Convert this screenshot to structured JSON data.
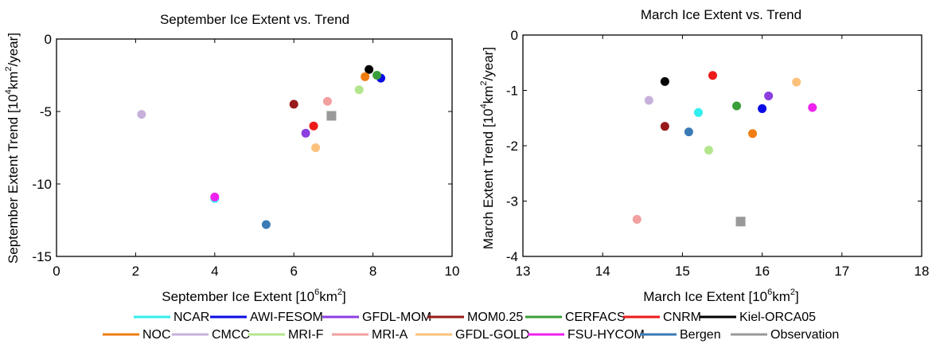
{
  "chart_data": [
    {
      "type": "scatter",
      "title": "September Ice Extent vs. Trend",
      "xlabel": {
        "pre": "September Ice Extent [10",
        "sup": "6",
        "post": "km",
        "sup2": "2",
        "end": "]"
      },
      "ylabel": {
        "pre": "September Extent Trend [10",
        "sup": "4",
        "post": "km",
        "sup2": "2",
        "end": "/year]"
      },
      "xlim": [
        0,
        10
      ],
      "ylim": [
        -15,
        0
      ],
      "xticks": [
        0,
        2,
        4,
        6,
        8,
        10
      ],
      "yticks": [
        0,
        -5,
        -10,
        -15
      ],
      "grid": false,
      "series": [
        {
          "name": "NCAR",
          "x": 4.0,
          "y": -11.0
        },
        {
          "name": "AWI-FESOM",
          "x": 8.2,
          "y": -2.7
        },
        {
          "name": "GFDL-MOM",
          "x": 6.3,
          "y": -6.5
        },
        {
          "name": "MOM0.25",
          "x": 6.0,
          "y": -4.5
        },
        {
          "name": "CERFACS",
          "x": 8.1,
          "y": -2.5
        },
        {
          "name": "CNRM",
          "x": 6.5,
          "y": -6.0
        },
        {
          "name": "Kiel-ORCA05",
          "x": 7.9,
          "y": -2.1
        },
        {
          "name": "NOC",
          "x": 7.8,
          "y": -2.6
        },
        {
          "name": "CMCC",
          "x": 2.15,
          "y": -5.2
        },
        {
          "name": "MRI-F",
          "x": 7.65,
          "y": -3.5
        },
        {
          "name": "MRI-A",
          "x": 6.85,
          "y": -4.3
        },
        {
          "name": "GFDL-GOLD",
          "x": 6.55,
          "y": -7.5
        },
        {
          "name": "FSU-HYCOM",
          "x": 4.0,
          "y": -10.9
        },
        {
          "name": "Bergen",
          "x": 5.3,
          "y": -12.8
        },
        {
          "name": "Observation",
          "x": 6.95,
          "y": -5.3
        }
      ]
    },
    {
      "type": "scatter",
      "title": "March Ice Extent vs. Trend",
      "xlabel": {
        "pre": "March Ice Extent [10",
        "sup": "6",
        "post": "km",
        "sup2": "2",
        "end": "]"
      },
      "ylabel": {
        "pre": "March Extent Trend [10",
        "sup": "4",
        "post": "km",
        "sup2": "2",
        "end": "/year]"
      },
      "xlim": [
        13,
        18
      ],
      "ylim": [
        -4,
        0
      ],
      "xticks": [
        13,
        14,
        15,
        16,
        17,
        18
      ],
      "yticks": [
        0,
        -1,
        -2,
        -3,
        -4
      ],
      "grid": false,
      "series": [
        {
          "name": "NCAR",
          "x": 15.2,
          "y": -1.4
        },
        {
          "name": "AWI-FESOM",
          "x": 16.0,
          "y": -1.33
        },
        {
          "name": "GFDL-MOM",
          "x": 16.08,
          "y": -1.1
        },
        {
          "name": "MOM0.25",
          "x": 14.78,
          "y": -1.65
        },
        {
          "name": "CERFACS",
          "x": 15.68,
          "y": -1.28
        },
        {
          "name": "CNRM",
          "x": 15.38,
          "y": -0.73
        },
        {
          "name": "Kiel-ORCA05",
          "x": 14.78,
          "y": -0.84
        },
        {
          "name": "NOC",
          "x": 15.88,
          "y": -1.78
        },
        {
          "name": "CMCC",
          "x": 14.58,
          "y": -1.18
        },
        {
          "name": "MRI-F",
          "x": 15.33,
          "y": -2.08
        },
        {
          "name": "MRI-A",
          "x": 14.43,
          "y": -3.33
        },
        {
          "name": "GFDL-GOLD",
          "x": 16.43,
          "y": -0.85
        },
        {
          "name": "FSU-HYCOM",
          "x": 16.63,
          "y": -1.31
        },
        {
          "name": "Bergen",
          "x": 15.08,
          "y": -1.75
        },
        {
          "name": "Observation",
          "x": 15.73,
          "y": -3.37
        }
      ]
    }
  ],
  "legend": {
    "placement": "bottom",
    "items": [
      {
        "name": "NCAR",
        "color": "#33eeee",
        "marker": "circle"
      },
      {
        "name": "AWI-FESOM",
        "color": "#0a0ae6",
        "marker": "circle"
      },
      {
        "name": "GFDL-MOM",
        "color": "#8c3ee0",
        "marker": "circle"
      },
      {
        "name": "MOM0.25",
        "color": "#991a1a",
        "marker": "circle"
      },
      {
        "name": "CERFACS",
        "color": "#3a9e3a",
        "marker": "circle"
      },
      {
        "name": "CNRM",
        "color": "#ee1a1a",
        "marker": "circle"
      },
      {
        "name": "Kiel-ORCA05",
        "color": "#000000",
        "marker": "circle"
      },
      {
        "name": "NOC",
        "color": "#f07d12",
        "marker": "circle"
      },
      {
        "name": "CMCC",
        "color": "#c7b1db",
        "marker": "circle"
      },
      {
        "name": "MRI-F",
        "color": "#b3e68c",
        "marker": "circle"
      },
      {
        "name": "MRI-A",
        "color": "#f2a0a0",
        "marker": "circle"
      },
      {
        "name": "GFDL-GOLD",
        "color": "#fcc27c",
        "marker": "circle"
      },
      {
        "name": "FSU-HYCOM",
        "color": "#ee22ee",
        "marker": "circle"
      },
      {
        "name": "Bergen",
        "color": "#3a7bb5",
        "marker": "circle"
      },
      {
        "name": "Observation",
        "color": "#999999",
        "marker": "square"
      }
    ]
  }
}
